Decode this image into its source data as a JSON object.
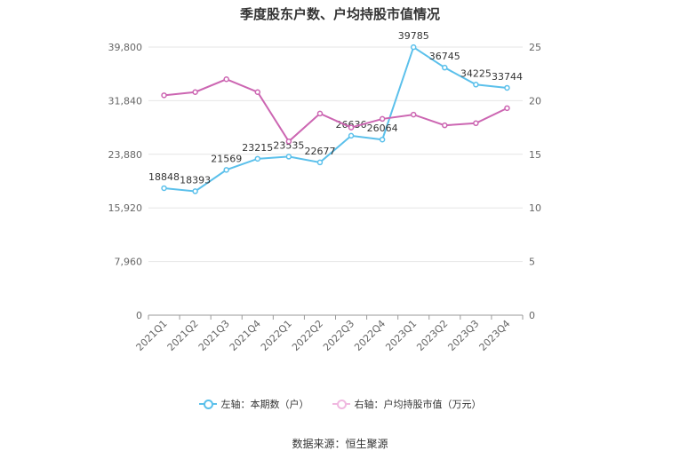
{
  "chart_data": {
    "type": "line",
    "title": "季度股东户数、户均持股市值情况",
    "categories": [
      "2021Q1",
      "2021Q2",
      "2021Q3",
      "2021Q4",
      "2022Q1",
      "2022Q2",
      "2022Q3",
      "2022Q4",
      "2023Q1",
      "2023Q2",
      "2023Q3",
      "2023Q4"
    ],
    "left_axis": {
      "ticks": [
        "0",
        "7,960",
        "15,920",
        "23,880",
        "31,840",
        "39,800"
      ],
      "ylim": [
        0,
        39800
      ]
    },
    "right_axis": {
      "ticks": [
        "0",
        "5",
        "10",
        "15",
        "20",
        "25"
      ],
      "ylim": [
        0,
        25
      ]
    },
    "series": [
      {
        "name": "左轴：本期数（户）",
        "axis": "left",
        "color": "#5bc0eb",
        "values": [
          18848,
          18393,
          21569,
          23215,
          23535,
          22677,
          26636,
          26064,
          39785,
          36745,
          34225,
          33744
        ],
        "labels": [
          "18848",
          "18393",
          "21569",
          "23215",
          "23535",
          "22677",
          "26636",
          "26064",
          "39785",
          "36745",
          "34225",
          "33744"
        ]
      },
      {
        "name": "右轴：户均持股市值（万元）",
        "axis": "right",
        "color": "#cc66b2",
        "values": [
          20.5,
          20.8,
          22.0,
          20.8,
          16.2,
          18.8,
          17.5,
          18.3,
          18.7,
          17.7,
          17.9,
          19.3
        ]
      }
    ],
    "grid": true,
    "legend": "bottom"
  },
  "source": "数据来源：恒生聚源"
}
